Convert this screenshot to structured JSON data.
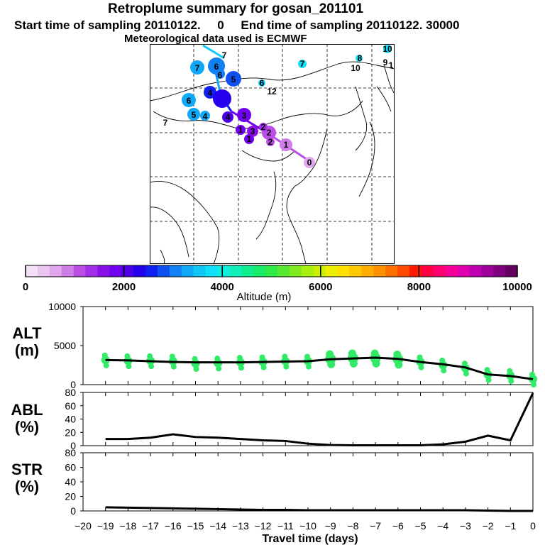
{
  "header": {
    "title": "Retroplume summary for gosan_201101",
    "start_label": "Start time of sampling 20110122.",
    "start_value": "0",
    "end_label": "End time of sampling 20110122. 30000",
    "meteo": "Meteorological data used is ECMWF"
  },
  "colorbar": {
    "tick_labels": [
      "0",
      "2000",
      "4000",
      "6000",
      "8000",
      "10000"
    ],
    "label": "Altitude  (m)",
    "colors": [
      "#f3e0f6",
      "#eac6f0",
      "#dfa6ec",
      "#cf7ee8",
      "#bb4ee5",
      "#a22ee8",
      "#8a10ea",
      "#7000ee",
      "#4d00e8",
      "#2400ec",
      "#1020ee",
      "#1050f0",
      "#1080f4",
      "#10a8f8",
      "#10c8f8",
      "#10e0f8",
      "#10eee0",
      "#10f0b8",
      "#10ee90",
      "#18ec68",
      "#30ea48",
      "#58ea30",
      "#80ec20",
      "#a8ee10",
      "#ccee00",
      "#eeee00",
      "#ffe000",
      "#ffc800",
      "#ffae00",
      "#ff9200",
      "#ff7000",
      "#ff4a00",
      "#ff1a00",
      "#ff0040",
      "#ff0070",
      "#f60098",
      "#e000b0",
      "#c000b0",
      "#a0009c",
      "#800080",
      "#640060"
    ]
  },
  "map": {
    "path_labels": [
      "7",
      "6",
      "6",
      "7",
      "6",
      "5",
      "4",
      "5",
      "6",
      "4",
      "7",
      "7",
      "4",
      "3",
      "3",
      "2",
      "2",
      "2",
      "1",
      "1",
      "1",
      "0",
      "12",
      "10",
      "8",
      "9",
      "1",
      "10"
    ]
  },
  "chart_data": [
    {
      "type": "line",
      "title": "",
      "panel_label": "ALT\n(m)",
      "panel_label_lines": [
        "ALT",
        "(m)"
      ],
      "ylabel": "ALT (m)",
      "ylim": [
        0,
        10000
      ],
      "yticks": [
        "10000",
        "5000",
        "0"
      ],
      "x": [
        -19,
        -18,
        -17,
        -16,
        -15,
        -14,
        -13,
        -12,
        -11,
        -10,
        -9,
        -8,
        -7,
        -6,
        -5,
        -4,
        -3,
        -2,
        -1,
        0
      ],
      "series": [
        {
          "name": "mean altitude",
          "values": [
            3150,
            3100,
            3000,
            2900,
            2850,
            2850,
            2850,
            2900,
            2950,
            3000,
            3250,
            3350,
            3450,
            3300,
            2900,
            2600,
            2200,
            1300,
            1100,
            700
          ]
        },
        {
          "name": "altitude clusters (green dots)",
          "values": [
            3150,
            3050,
            3050,
            3000,
            2700,
            2750,
            2850,
            2900,
            3000,
            3000,
            3300,
            3400,
            3400,
            3250,
            2900,
            2500,
            2100,
            1300,
            1150,
            700
          ]
        }
      ],
      "annotations": [
        "scattered green cluster dots around mean"
      ]
    },
    {
      "type": "line",
      "title": "",
      "panel_label_lines": [
        "ABL",
        "(%)"
      ],
      "ylabel": "ABL (%)",
      "ylim": [
        0,
        80
      ],
      "yticks": [
        "80",
        "60",
        "40",
        "20",
        "0"
      ],
      "x": [
        -19,
        -18,
        -17,
        -16,
        -15,
        -14,
        -13,
        -12,
        -11,
        -10,
        -9,
        -8,
        -7,
        -6,
        -5,
        -4,
        -3,
        -2,
        -1,
        0
      ],
      "series": [
        {
          "name": "ABL",
          "values": [
            10,
            10,
            12,
            17,
            13,
            12,
            10,
            8,
            7,
            3,
            1,
            0.5,
            0.5,
            0.5,
            0.5,
            2,
            6,
            15,
            8,
            79
          ]
        }
      ]
    },
    {
      "type": "line",
      "title": "",
      "panel_label_lines": [
        "STR",
        "(%)"
      ],
      "ylabel": "STR (%)",
      "ylim": [
        0,
        80
      ],
      "yticks": [
        "80",
        "60",
        "40",
        "20",
        "0"
      ],
      "x": [
        -19,
        -18,
        -17,
        -16,
        -15,
        -14,
        -13,
        -12,
        -11,
        -10,
        -9,
        -8,
        -7,
        -6,
        -5,
        -4,
        -3,
        -2,
        -1,
        0
      ],
      "series": [
        {
          "name": "STR",
          "values": [
            5,
            4.5,
            4,
            3.5,
            3,
            2.5,
            2,
            1.5,
            1.5,
            1,
            1,
            1,
            1,
            1,
            1,
            1,
            1,
            0.5,
            0,
            0
          ]
        }
      ],
      "xlabel": "Travel time (days)",
      "xticks": [
        "−20",
        "−19",
        "−18",
        "−17",
        "−16",
        "−15",
        "−14",
        "−13",
        "−12",
        "−11",
        "−10",
        "−9",
        "−8",
        "−7",
        "−6",
        "−5",
        "−4",
        "−3",
        "−2",
        "−1",
        "0"
      ]
    }
  ]
}
